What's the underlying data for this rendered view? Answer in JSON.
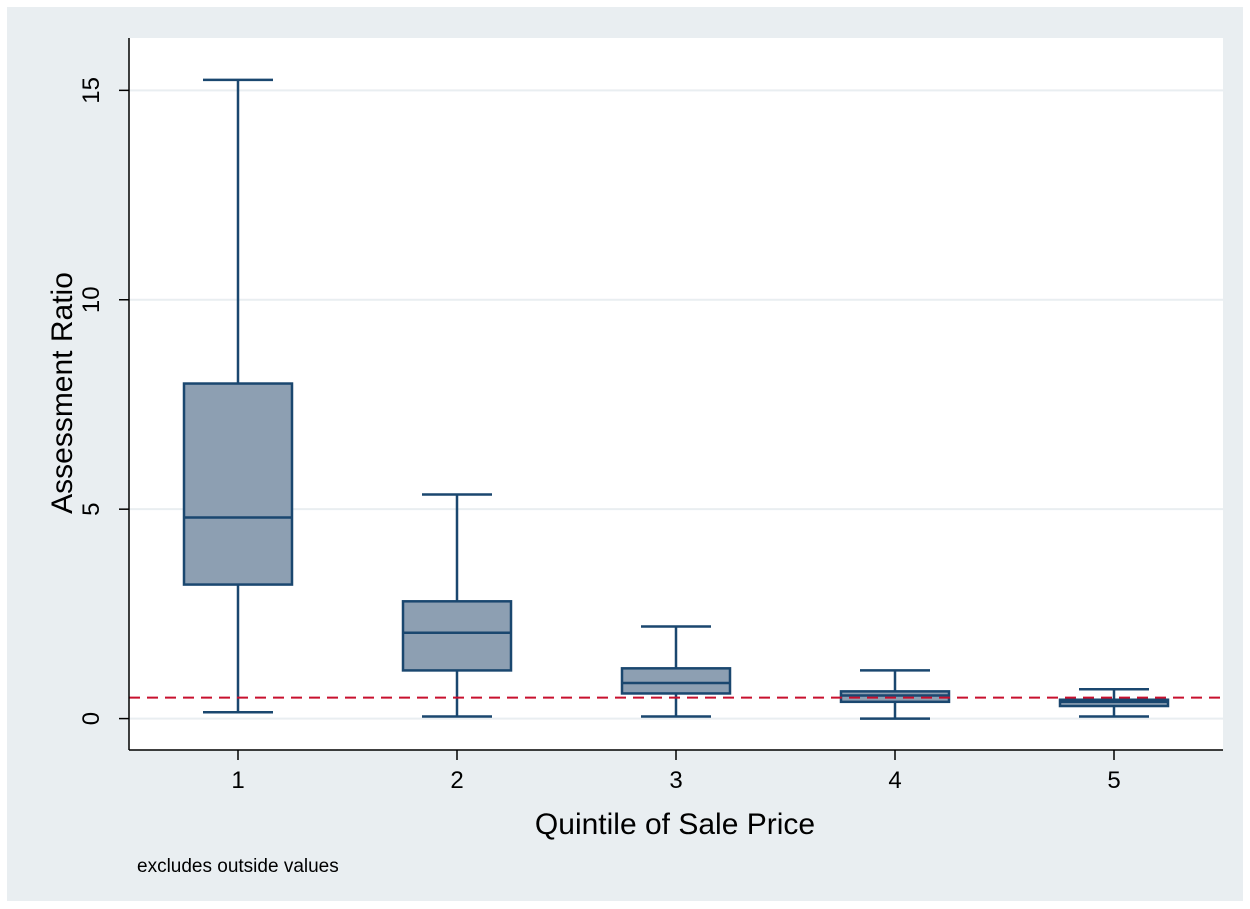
{
  "chart_data": {
    "type": "box",
    "xlabel": "Quintile of Sale Price",
    "ylabel": "Assessment Ratio",
    "note": "excludes outside values",
    "categories": [
      "1",
      "2",
      "3",
      "4",
      "5"
    ],
    "boxes": [
      {
        "category": "1",
        "min": 0.15,
        "q1": 3.2,
        "median": 4.8,
        "q3": 8.0,
        "max": 15.25
      },
      {
        "category": "2",
        "min": 0.05,
        "q1": 1.15,
        "median": 2.05,
        "q3": 2.8,
        "max": 5.35
      },
      {
        "category": "3",
        "min": 0.05,
        "q1": 0.6,
        "median": 0.85,
        "q3": 1.2,
        "max": 2.2
      },
      {
        "category": "4",
        "min": 0.0,
        "q1": 0.4,
        "median": 0.55,
        "q3": 0.65,
        "max": 1.15
      },
      {
        "category": "5",
        "min": 0.05,
        "q1": 0.3,
        "median": 0.4,
        "q3": 0.45,
        "max": 0.7
      }
    ],
    "reference_line": {
      "y": 0.5,
      "style": "dashed",
      "color": "#c8102e"
    },
    "yticks": [
      0,
      5,
      10,
      15
    ],
    "ylim": [
      -0.75,
      16.25
    ],
    "grid": true,
    "colors": {
      "box_fill": "#8d9fb2",
      "box_stroke": "#1a476f",
      "grid": "#e9eef1",
      "plot_bg": "#ffffff",
      "outer_bg": "#e9eef1"
    }
  }
}
